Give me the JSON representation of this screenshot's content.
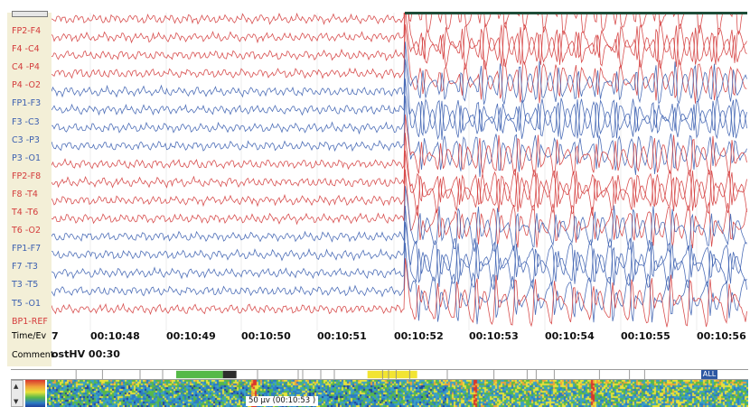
{
  "channels": [
    {
      "label": "FP2-F4",
      "color": "#d43c3c"
    },
    {
      "label": "F4 -C4",
      "color": "#d43c3c"
    },
    {
      "label": "C4 -P4",
      "color": "#d43c3c"
    },
    {
      "label": "P4 -O2",
      "color": "#d43c3c"
    },
    {
      "label": "FP1-F3",
      "color": "#3b5fb0"
    },
    {
      "label": "F3 -C3",
      "color": "#3b5fb0"
    },
    {
      "label": "C3 -P3",
      "color": "#3b5fb0"
    },
    {
      "label": "P3 -O1",
      "color": "#3b5fb0"
    },
    {
      "label": "FP2-F8",
      "color": "#d43c3c"
    },
    {
      "label": "F8 -T4",
      "color": "#d43c3c"
    },
    {
      "label": "T4 -T6",
      "color": "#d43c3c"
    },
    {
      "label": "T6 -O2",
      "color": "#d43c3c"
    },
    {
      "label": "FP1-F7",
      "color": "#3b5fb0"
    },
    {
      "label": "F7 -T3",
      "color": "#3b5fb0"
    },
    {
      "label": "T3 -T5",
      "color": "#3b5fb0"
    },
    {
      "label": "T5 -O1",
      "color": "#3b5fb0"
    },
    {
      "label": "BP1-REF",
      "color": "#d43c3c"
    }
  ],
  "labels": {
    "time_event": "Time/Ev",
    "comment": "Comment"
  },
  "time_axis": {
    "first_partial": "7",
    "ticks": [
      "00:10:48",
      "00:10:49",
      "00:10:50",
      "00:10:51",
      "00:10:52",
      "00:10:53",
      "00:10:54",
      "00:10:55",
      "00:10:56"
    ]
  },
  "event": {
    "text": "ostHV 00:30"
  },
  "spectrogram": {
    "scale_label": "50 µv (00:10:53 )"
  },
  "all_button": {
    "label": "ALL"
  },
  "colors": {
    "left_hemisphere": "#3b5fb0",
    "right_hemisphere": "#d43c3c",
    "label_panel": "#f3efd7",
    "event_green": "#55b948",
    "event_yellow": "#f2e432"
  }
}
